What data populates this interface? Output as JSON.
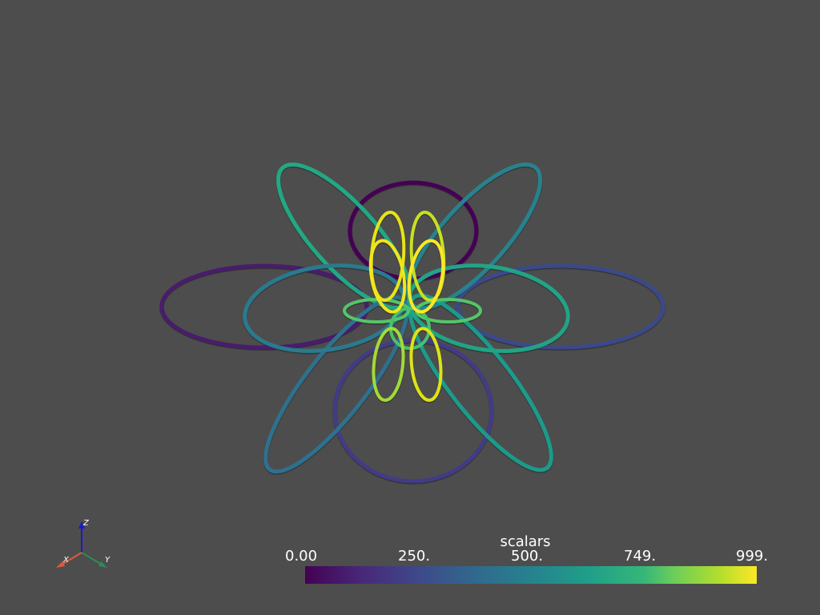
{
  "scene": {
    "background": "#4d4d4d",
    "colormap": "viridis"
  },
  "axes": {
    "x_label": "X",
    "y_label": "Y",
    "z_label": "Z",
    "x_color": "#e0593c",
    "y_color": "#2e8b57",
    "z_color": "#1a1acd"
  },
  "scalar_bar": {
    "title": "scalars",
    "ticks": [
      "0.00",
      "250.",
      "500.",
      "749.",
      "999."
    ]
  }
}
